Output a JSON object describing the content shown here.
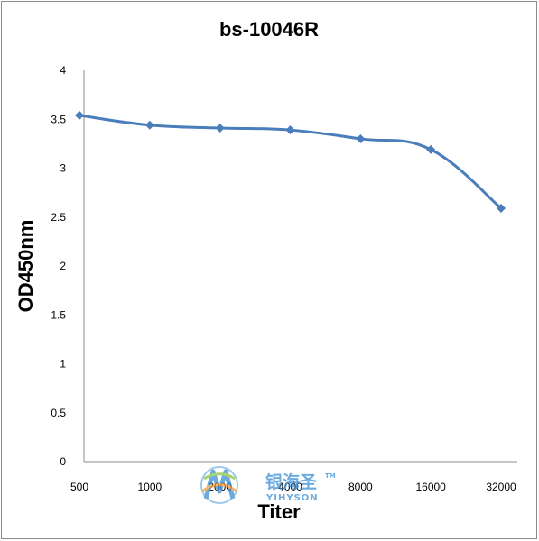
{
  "chart_data": {
    "type": "line",
    "title": "bs-10046R",
    "xlabel": "Titer",
    "ylabel": "OD450nm",
    "categories": [
      "500",
      "1000",
      "2000",
      "4000",
      "8000",
      "16000",
      "32000"
    ],
    "series": [
      {
        "values": [
          3.54,
          3.44,
          3.41,
          3.39,
          3.3,
          3.19,
          2.59
        ]
      }
    ],
    "ylim": [
      0,
      4
    ],
    "yticks": [
      "0",
      "0.5",
      "1",
      "1.5",
      "2",
      "2.5",
      "3",
      "3.5",
      "4"
    ],
    "grid": false,
    "line_color": "#4a7ebb"
  },
  "watermark": {
    "brand_cn": "银海圣",
    "brand_tm": "TM",
    "brand_en": "YIHYSON"
  }
}
